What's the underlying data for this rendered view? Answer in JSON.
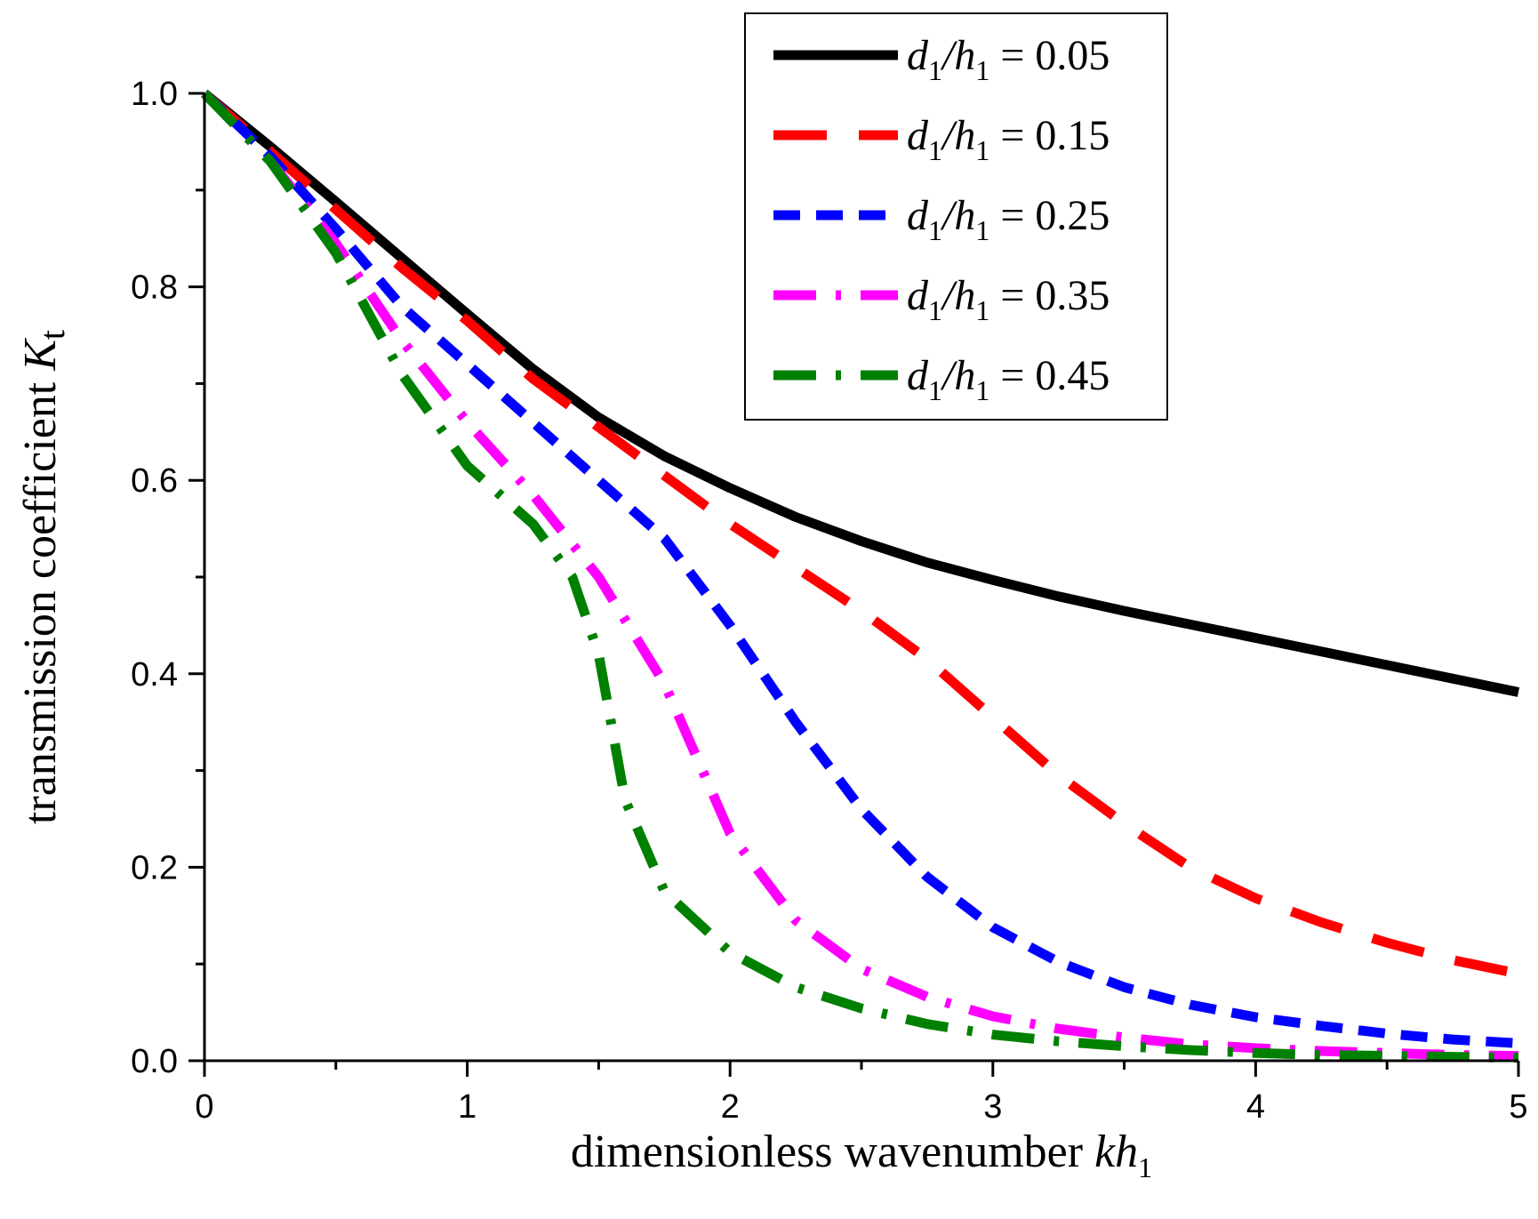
{
  "chart_data": {
    "type": "line",
    "title": "",
    "xlabel": "dimensionless wavenumber kh₁",
    "xlabel_parts": {
      "text": "dimensionless wavenumber ",
      "var": "kh",
      "sub": "1"
    },
    "ylabel": "transmission coefficient Kt",
    "ylabel_parts": {
      "text": "transmission coefficient ",
      "var": "K",
      "sub": "t"
    },
    "xlim": [
      0,
      5
    ],
    "ylim": [
      0,
      1.0
    ],
    "xticks": [
      0,
      1,
      2,
      3,
      4,
      5
    ],
    "xtick_labels": [
      "0",
      "1",
      "2",
      "3",
      "4",
      "5"
    ],
    "yticks": [
      0.0,
      0.2,
      0.4,
      0.6,
      0.8,
      1.0
    ],
    "ytick_labels": [
      "0.0",
      "0.2",
      "0.4",
      "0.6",
      "0.8",
      "1.0"
    ],
    "grid": false,
    "legend_position": "top-right",
    "series": [
      {
        "name": "d1/h1 = 0.05",
        "label_parts": {
          "var1": "d",
          "sub1": "1",
          "var2": "h",
          "sub2": "1",
          "value": "0.05"
        },
        "color": "#000000",
        "style": "solid",
        "x": [
          0,
          0.25,
          0.5,
          0.75,
          1.0,
          1.25,
          1.5,
          1.75,
          2.0,
          2.25,
          2.5,
          2.75,
          3.0,
          3.25,
          3.5,
          3.75,
          4.0,
          4.25,
          4.5,
          4.75,
          5.0
        ],
        "y": [
          1.0,
          0.945,
          0.888,
          0.83,
          0.772,
          0.715,
          0.665,
          0.625,
          0.592,
          0.562,
          0.537,
          0.515,
          0.497,
          0.48,
          0.465,
          0.451,
          0.437,
          0.423,
          0.409,
          0.395,
          0.381
        ]
      },
      {
        "name": "d1/h1 = 0.15",
        "label_parts": {
          "var1": "d",
          "sub1": "1",
          "var2": "h",
          "sub2": "1",
          "value": "0.15"
        },
        "color": "#ff0000",
        "style": "long-dash",
        "x": [
          0,
          0.25,
          0.5,
          0.75,
          1.0,
          1.25,
          1.5,
          1.75,
          2.0,
          2.25,
          2.5,
          2.75,
          3.0,
          3.25,
          3.5,
          3.75,
          4.0,
          4.25,
          4.5,
          4.75,
          5.0
        ],
        "y": [
          1.0,
          0.94,
          0.88,
          0.82,
          0.765,
          0.705,
          0.655,
          0.605,
          0.555,
          0.51,
          0.465,
          0.415,
          0.355,
          0.295,
          0.245,
          0.2,
          0.168,
          0.143,
          0.122,
          0.104,
          0.09
        ]
      },
      {
        "name": "d1/h1 = 0.25",
        "label_parts": {
          "var1": "d",
          "sub1": "1",
          "var2": "h",
          "sub2": "1",
          "value": "0.25"
        },
        "color": "#0000ff",
        "style": "short-dash",
        "x": [
          0,
          0.25,
          0.5,
          0.75,
          1.0,
          1.25,
          1.5,
          1.75,
          2.0,
          2.25,
          2.5,
          2.75,
          3.0,
          3.25,
          3.5,
          3.75,
          4.0,
          4.25,
          4.5,
          4.75,
          5.0
        ],
        "y": [
          1.0,
          0.935,
          0.86,
          0.78,
          0.72,
          0.66,
          0.6,
          0.54,
          0.45,
          0.35,
          0.26,
          0.19,
          0.138,
          0.102,
          0.076,
          0.058,
          0.045,
          0.036,
          0.028,
          0.022,
          0.018
        ]
      },
      {
        "name": "d1/h1 = 0.35",
        "label_parts": {
          "var1": "d",
          "sub1": "1",
          "var2": "h",
          "sub2": "1",
          "value": "0.35"
        },
        "color": "#ff00ff",
        "style": "dash-dot",
        "x": [
          0,
          0.25,
          0.5,
          0.75,
          1.0,
          1.25,
          1.5,
          1.75,
          2.0,
          2.25,
          2.5,
          2.75,
          3.0,
          3.25,
          3.5,
          3.75,
          4.0,
          4.25,
          4.5,
          4.75,
          5.0
        ],
        "y": [
          1.0,
          0.93,
          0.845,
          0.745,
          0.66,
          0.585,
          0.5,
          0.39,
          0.235,
          0.145,
          0.095,
          0.066,
          0.046,
          0.033,
          0.024,
          0.017,
          0.013,
          0.01,
          0.008,
          0.006,
          0.005
        ]
      },
      {
        "name": "d1/h1 = 0.45",
        "label_parts": {
          "var1": "d",
          "sub1": "1",
          "var2": "h",
          "sub2": "1",
          "value": "0.45"
        },
        "color": "#008000",
        "style": "dash-dot",
        "x": [
          0,
          0.25,
          0.5,
          0.75,
          1.0,
          1.25,
          1.4,
          1.5,
          1.6,
          1.75,
          2.0,
          2.25,
          2.5,
          2.75,
          3.0,
          3.25,
          3.5,
          3.75,
          4.0,
          4.25,
          4.5,
          4.75,
          5.0
        ],
        "y": [
          1.0,
          0.93,
          0.835,
          0.71,
          0.615,
          0.555,
          0.5,
          0.42,
          0.27,
          0.175,
          0.112,
          0.076,
          0.054,
          0.038,
          0.027,
          0.02,
          0.015,
          0.011,
          0.008,
          0.006,
          0.005,
          0.004,
          0.003
        ]
      }
    ]
  }
}
